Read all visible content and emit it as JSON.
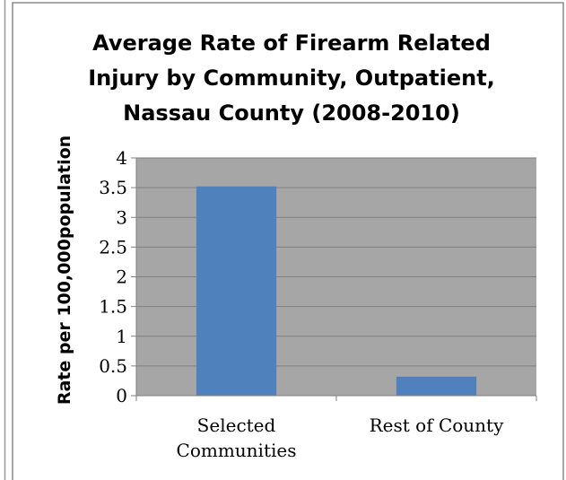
{
  "chart_data": {
    "type": "bar",
    "title_lines": [
      "Average Rate of Firearm Related",
      "Injury by Community, Outpatient,",
      "Nassau County (2008-2010)"
    ],
    "ylabel": "Rate per 100,000population",
    "xlabel": "",
    "categories": [
      [
        "Selected",
        "Communities"
      ],
      [
        "Rest of County"
      ]
    ],
    "values": [
      3.52,
      0.32
    ],
    "ylim": [
      0,
      4
    ],
    "yticks": [
      "0",
      "0.5",
      "1",
      "1.5",
      "2",
      "2.5",
      "3",
      "3.5",
      "4"
    ],
    "grid": true,
    "legend": "none",
    "colors": {
      "bar": "#4f81bd",
      "plot_background": "#a6a6a6",
      "gridline": "#7f7f7f",
      "frame_border": "#8c8c8c"
    }
  }
}
